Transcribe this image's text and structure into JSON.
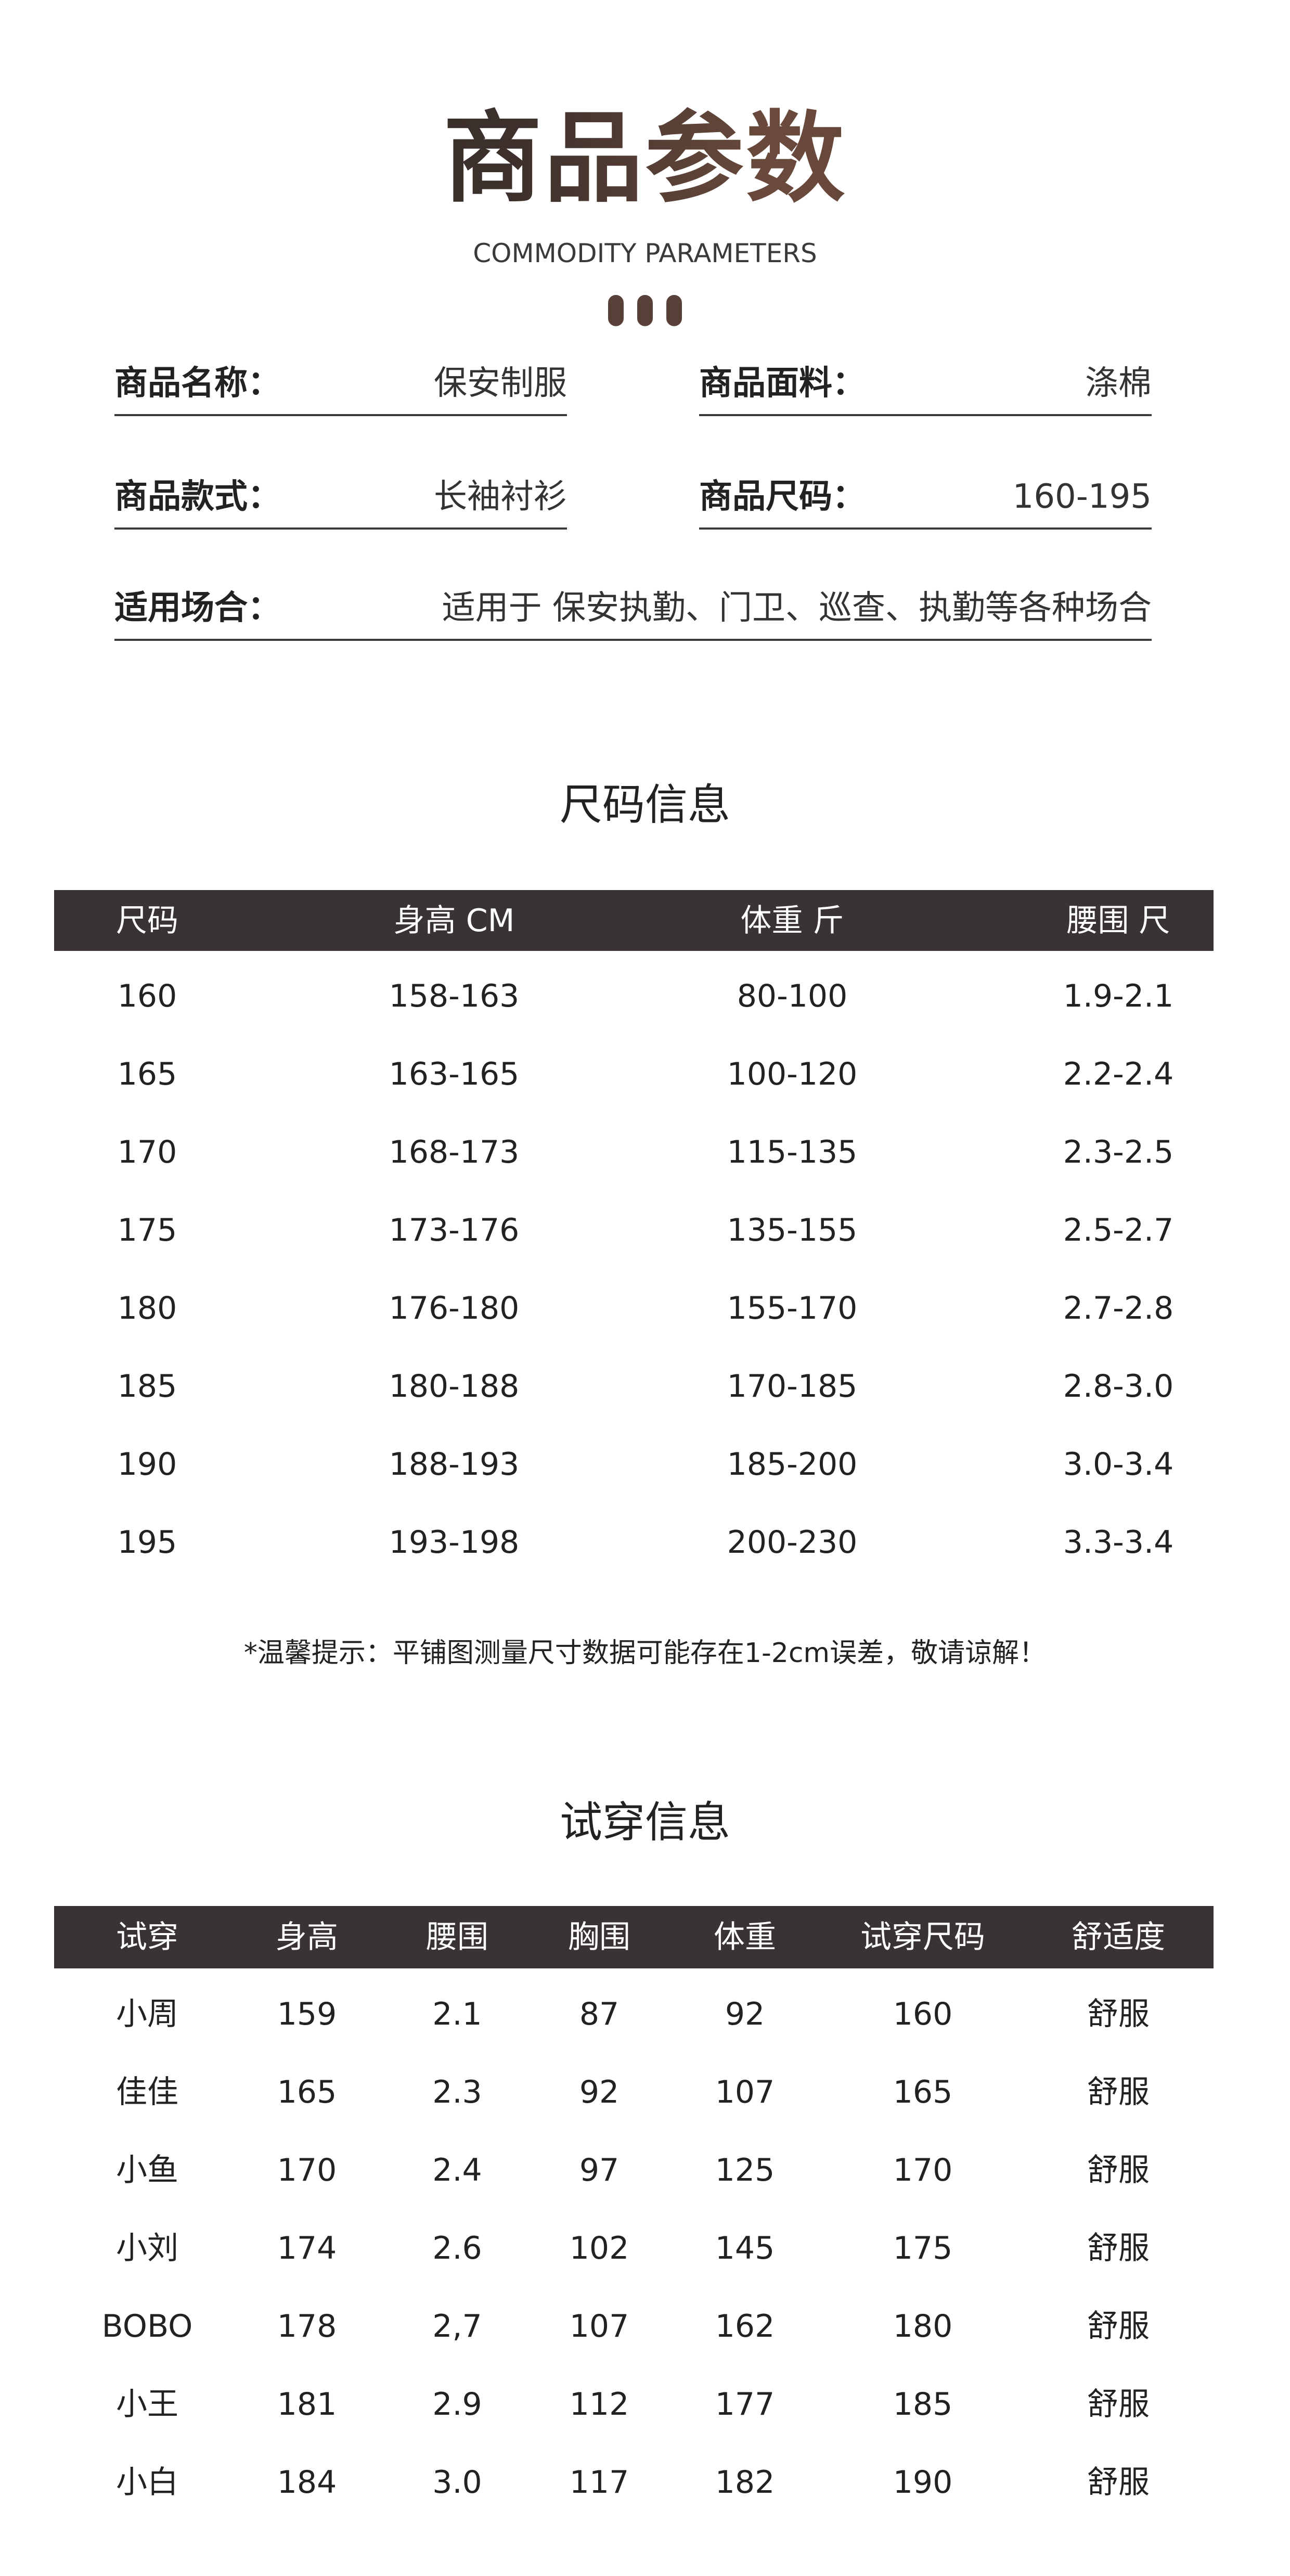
{
  "header": {
    "title": "商品参数",
    "subtitle": "COMMODITY PARAMETERS",
    "dot_color": "#574038"
  },
  "params": [
    {
      "label": "商品名称：",
      "value": "保安制服"
    },
    {
      "label": "商品面料：",
      "value": "涤棉"
    },
    {
      "label": "商品款式：",
      "value": "长袖衬衫"
    },
    {
      "label": "商品尺码：",
      "value": "160-195"
    },
    {
      "label": "适用场合：",
      "value": "适用于 保安执勤、门卫、巡查、执勤等各种场合"
    }
  ],
  "size_info": {
    "title": "尺码信息",
    "header_color": "#3a3333",
    "columns": [
      "尺码",
      "身高 CM",
      "体重 斤",
      "腰围 尺"
    ],
    "rows": [
      [
        "160",
        "158-163",
        "80-100",
        "1.9-2.1"
      ],
      [
        "165",
        "163-165",
        "100-120",
        "2.2-2.4"
      ],
      [
        "170",
        "168-173",
        "115-135",
        "2.3-2.5"
      ],
      [
        "175",
        "173-176",
        "135-155",
        "2.5-2.7"
      ],
      [
        "180",
        "176-180",
        "155-170",
        "2.7-2.8"
      ],
      [
        "185",
        "180-188",
        "170-185",
        "2.8-3.0"
      ],
      [
        "190",
        "188-193",
        "185-200",
        "3.0-3.4"
      ],
      [
        "195",
        "193-198",
        "200-230",
        "3.3-3.4"
      ]
    ],
    "note": "*温馨提示：平铺图测量尺寸数据可能存在1-2cm误差，敬请谅解！"
  },
  "tryon_info": {
    "title": "试穿信息",
    "columns": [
      "试穿",
      "身高",
      "腰围",
      "胸围",
      "体重",
      "试穿尺码",
      "舒适度"
    ],
    "rows": [
      [
        "小周",
        "159",
        "2.1",
        "87",
        "92",
        "160",
        "舒服"
      ],
      [
        "佳佳",
        "165",
        "2.3",
        "92",
        "107",
        "165",
        "舒服"
      ],
      [
        "小鱼",
        "170",
        "2.4",
        "97",
        "125",
        "170",
        "舒服"
      ],
      [
        "小刘",
        "174",
        "2.6",
        "102",
        "145",
        "175",
        "舒服"
      ],
      [
        "BOBO",
        "178",
        "2,7",
        "107",
        "162",
        "180",
        "舒服"
      ],
      [
        "小王",
        "181",
        "2.9",
        "112",
        "177",
        "185",
        "舒服"
      ],
      [
        "小白",
        "184",
        "3.0",
        "117",
        "182",
        "190",
        "舒服"
      ]
    ]
  }
}
